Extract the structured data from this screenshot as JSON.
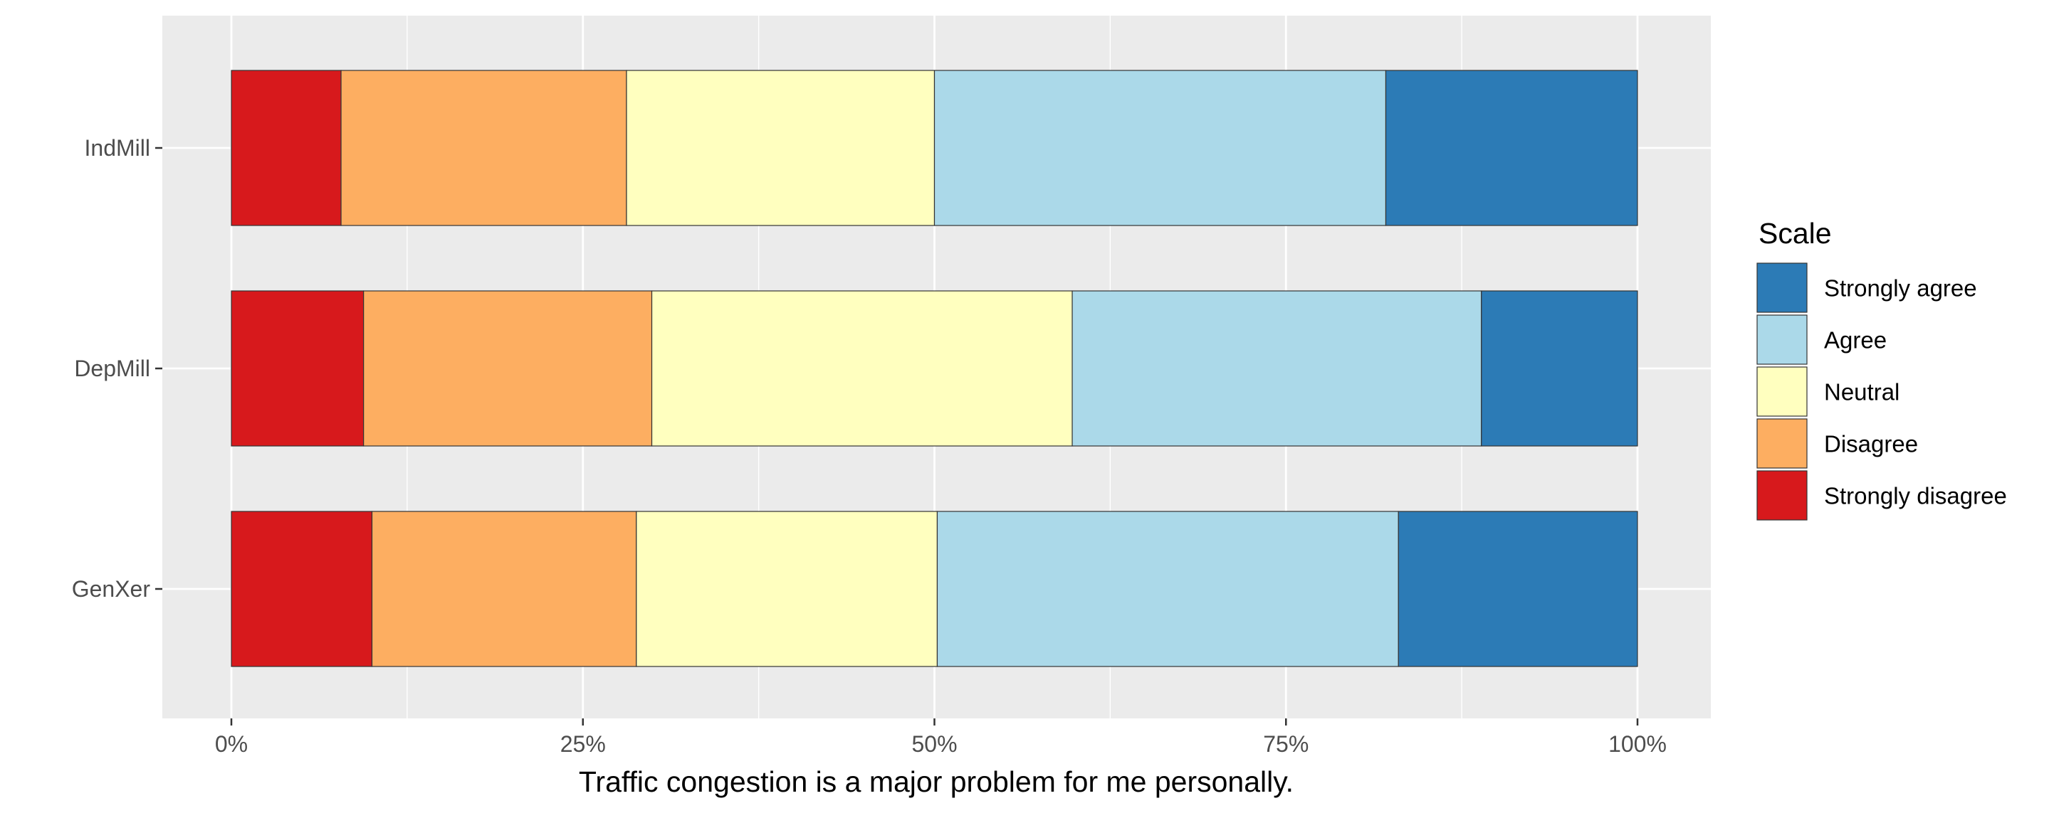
{
  "chart_data": {
    "type": "bar",
    "orientation": "horizontal",
    "stacked": "percent",
    "categories": [
      "GenXer",
      "DepMill",
      "IndMill"
    ],
    "x_ticks": [
      "0%",
      "25%",
      "50%",
      "75%",
      "100%"
    ],
    "xlabel": "Traffic congestion is a major problem for me personally.",
    "ylabel": "",
    "xlim": [
      0,
      100
    ],
    "grid": true,
    "legend": {
      "title": "Scale",
      "position": "right"
    },
    "series": [
      {
        "name": "Strongly disagree",
        "color": "#D7191C",
        "values": [
          10.0,
          9.4,
          7.8
        ]
      },
      {
        "name": "Disagree",
        "color": "#FDAE61",
        "values": [
          18.8,
          20.5,
          20.3
        ]
      },
      {
        "name": "Neutral",
        "color": "#FFFFBF",
        "values": [
          21.4,
          29.9,
          21.9
        ]
      },
      {
        "name": "Agree",
        "color": "#ABD9E9",
        "values": [
          32.8,
          29.1,
          32.1
        ]
      },
      {
        "name": "Strongly agree",
        "color": "#2C7BB6",
        "values": [
          17.0,
          11.1,
          17.9
        ]
      }
    ],
    "legend_order": [
      "Strongly agree",
      "Agree",
      "Neutral",
      "Disagree",
      "Strongly disagree"
    ]
  }
}
